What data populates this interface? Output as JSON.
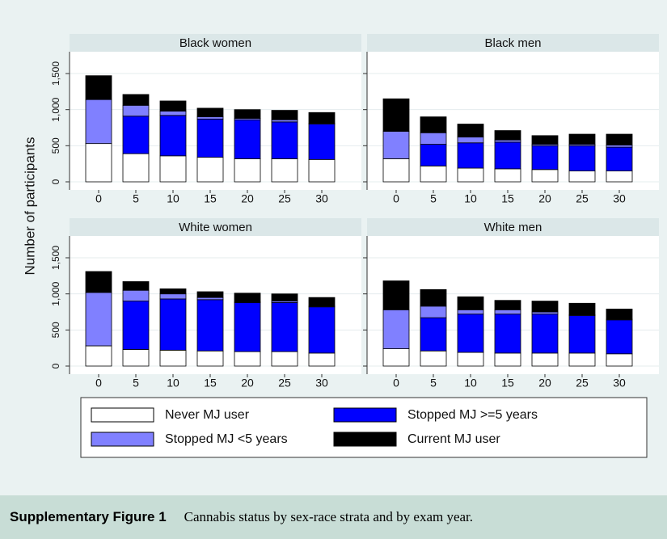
{
  "ylabel": "Number of participants",
  "caption": {
    "label": "Supplementary Figure 1",
    "text": "Cannabis status by sex-race strata and by exam year."
  },
  "chart_data": [
    {
      "type": "stacked_bar",
      "title": "Black women",
      "categories": [
        0,
        5,
        10,
        15,
        20,
        25,
        30
      ],
      "ylim": [
        0,
        1780
      ],
      "yticks": [
        0,
        500,
        {
          "value": 1000,
          "label": "1,000"
        },
        {
          "value": 1500,
          "label": "1,500"
        }
      ],
      "grid": true,
      "series": [
        {
          "name": "Never MJ user",
          "color": "#ffffff",
          "values": [
            530,
            390,
            360,
            340,
            320,
            320,
            310
          ]
        },
        {
          "name": "Stopped MJ >=5 years",
          "color": "#0000ff",
          "values": [
            0,
            520,
            560,
            530,
            540,
            510,
            490
          ]
        },
        {
          "name": "Stopped MJ <5 years",
          "color": "#8080ff",
          "values": [
            610,
            150,
            60,
            30,
            20,
            30,
            10
          ]
        },
        {
          "name": "Current MJ user",
          "color": "#000000",
          "values": [
            330,
            150,
            140,
            120,
            120,
            130,
            150
          ]
        }
      ]
    },
    {
      "type": "stacked_bar",
      "title": "Black men",
      "categories": [
        0,
        5,
        10,
        15,
        20,
        25,
        30
      ],
      "ylim": [
        0,
        1780
      ],
      "yticks": [
        0,
        500,
        1000,
        1500
      ],
      "grid": true,
      "series": [
        {
          "name": "Never MJ user",
          "color": "#ffffff",
          "values": [
            320,
            220,
            190,
            180,
            170,
            150,
            150
          ]
        },
        {
          "name": "Stopped MJ >=5 years",
          "color": "#0000ff",
          "values": [
            0,
            300,
            350,
            370,
            330,
            350,
            330
          ]
        },
        {
          "name": "Stopped MJ <5 years",
          "color": "#8080ff",
          "values": [
            380,
            160,
            80,
            30,
            20,
            20,
            30
          ]
        },
        {
          "name": "Current MJ user",
          "color": "#000000",
          "values": [
            450,
            220,
            180,
            130,
            120,
            140,
            150
          ]
        }
      ]
    },
    {
      "type": "stacked_bar",
      "title": "White women",
      "categories": [
        0,
        5,
        10,
        15,
        20,
        25,
        30
      ],
      "ylim": [
        0,
        1780
      ],
      "yticks": [
        0,
        500,
        {
          "value": 1000,
          "label": "1,000"
        },
        {
          "value": 1500,
          "label": "1,500"
        }
      ],
      "grid": true,
      "series": [
        {
          "name": "Never MJ user",
          "color": "#ffffff",
          "values": [
            280,
            230,
            220,
            210,
            200,
            200,
            180
          ]
        },
        {
          "name": "Stopped MJ >=5 years",
          "color": "#0000ff",
          "values": [
            0,
            670,
            710,
            710,
            680,
            680,
            640
          ]
        },
        {
          "name": "Stopped MJ <5 years",
          "color": "#8080ff",
          "values": [
            740,
            150,
            70,
            30,
            10,
            20,
            10
          ]
        },
        {
          "name": "Current MJ user",
          "color": "#000000",
          "values": [
            290,
            120,
            70,
            80,
            120,
            100,
            120
          ]
        }
      ]
    },
    {
      "type": "stacked_bar",
      "title": "White men",
      "categories": [
        0,
        5,
        10,
        15,
        20,
        25,
        30
      ],
      "ylim": [
        0,
        1780
      ],
      "yticks": [
        0,
        500,
        1000,
        1500
      ],
      "grid": true,
      "series": [
        {
          "name": "Never MJ user",
          "color": "#ffffff",
          "values": [
            240,
            210,
            190,
            180,
            180,
            180,
            170
          ]
        },
        {
          "name": "Stopped MJ >=5 years",
          "color": "#0000ff",
          "values": [
            0,
            460,
            530,
            540,
            540,
            520,
            470
          ]
        },
        {
          "name": "Stopped MJ <5 years",
          "color": "#8080ff",
          "values": [
            540,
            160,
            60,
            60,
            30,
            10,
            10
          ]
        },
        {
          "name": "Current MJ user",
          "color": "#000000",
          "values": [
            400,
            230,
            180,
            130,
            150,
            160,
            140
          ]
        }
      ]
    }
  ]
}
